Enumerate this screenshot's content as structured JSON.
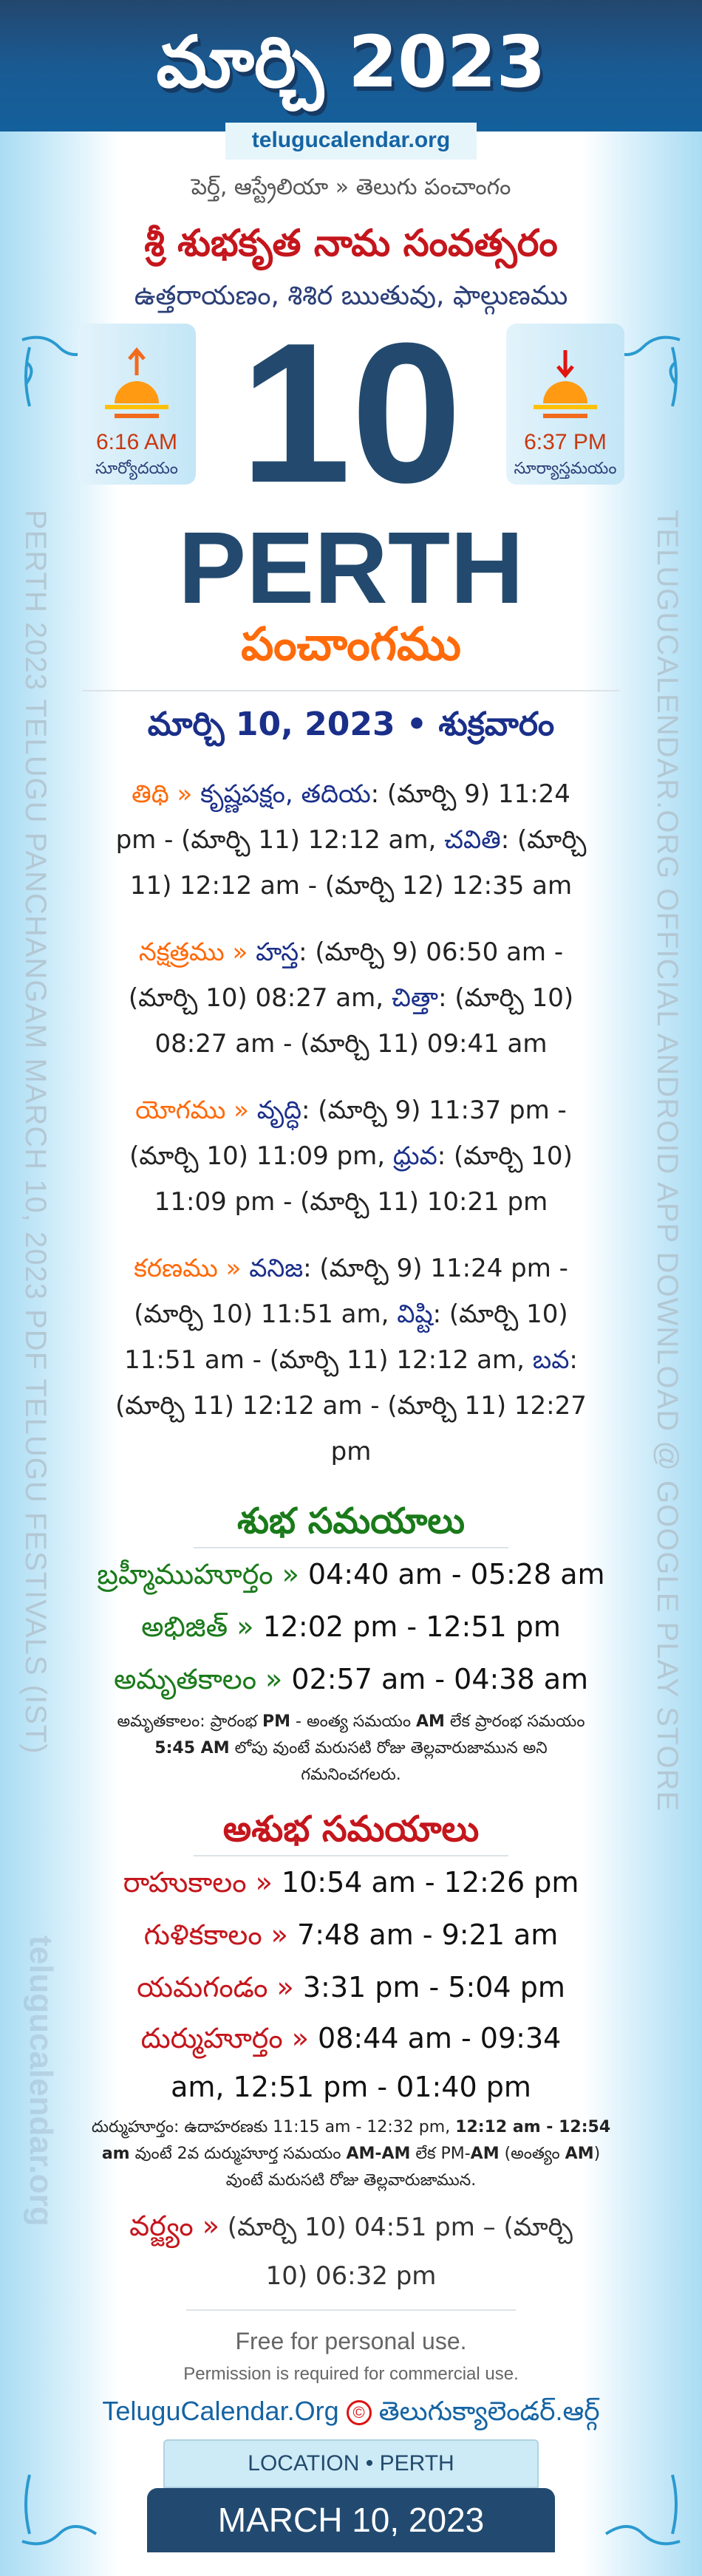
{
  "header": {
    "title": "మార్చి 2023",
    "site": "telugucalendar.org"
  },
  "intro": {
    "subtitle": "పెర్త్, ఆస్ట్రేలియా » తెలుగు పంచాంగం",
    "samvatsaram": "శ్రీ శుభకృత నామ సంవత్సరం",
    "season": "ఉత్తరాయణం, శిశిర ఋతువు, ఫాల్గుణము"
  },
  "sunrise": {
    "time": "6:16 AM",
    "label": "సూర్యోదయం",
    "icon": "sunrise-icon"
  },
  "sunset": {
    "time": "6:37 PM",
    "label": "సూర్యాస్తమయం",
    "icon": "sunset-icon"
  },
  "day": "10",
  "city": "PERTH",
  "panchangam": "పంచాంగము",
  "date_line": "మార్చి 10, 2023 • శుక్రవారం",
  "side": {
    "left": "PERTH 2023 TELUGU PANCHANGAM MARCH 10, 2023 PDF TELUGU FESTIVALS (IST)",
    "right": "TELUGUCALENDAR.ORG OFFICIAL ANDROID APP DOWNLOAD @ GOOGLE PLAY STORE",
    "watermark": "telugucalendar.org"
  },
  "elements": [
    {
      "label": "తిథి »",
      "items": [
        {
          "name": "కృష్ణపక్షం, తదియ",
          "text": ": (మార్చి 9) 11:24 pm - (మార్చి 11) 12:12 am, "
        },
        {
          "name": "చవితి",
          "text": ": (మార్చి 11) 12:12 am - (మార్చి 12) 12:35 am"
        }
      ]
    },
    {
      "label": "నక్షత్రము »",
      "items": [
        {
          "name": "హస్త",
          "text": ": (మార్చి 9) 06:50 am - (మార్చి 10) 08:27 am, "
        },
        {
          "name": "చిత్తా",
          "text": ": (మార్చి 10) 08:27 am - (మార్చి 11) 09:41 am"
        }
      ]
    },
    {
      "label": "యోగము »",
      "items": [
        {
          "name": "వృద్ధి",
          "text": ": (మార్చి 9) 11:37 pm - (మార్చి 10) 11:09 pm, "
        },
        {
          "name": "ధ్రువ",
          "text": ": (మార్చి 10) 11:09 pm - (మార్చి 11) 10:21 pm"
        }
      ]
    },
    {
      "label": "కరణము »",
      "items": [
        {
          "name": "వనిజ",
          "text": ": (మార్చి 9) 11:24 pm - (మార్చి 10) 11:51 am, "
        },
        {
          "name": "విష్టి",
          "text": ": (మార్చి 10) 11:51 am - (మార్చి 11) 12:12 am, "
        },
        {
          "name": "బవ",
          "text": ": (మార్చి 11) 12:12 am - (మార్చి 11) 12:27 pm"
        }
      ]
    }
  ],
  "good": {
    "title": "శుభ సమయాలు",
    "rows": [
      {
        "label": "బ్రహ్మీముహూర్తం »",
        "value": " 04:40 am - 05:28 am"
      },
      {
        "label": "అభిజిత్ »",
        "value": " 12:02 pm - 12:51 pm"
      },
      {
        "label": "అమృతకాలం »",
        "value": " 02:57 am - 04:38 am"
      }
    ],
    "note": {
      "a": "అమృతకాలం: ప్రారంభ ",
      "b": "PM",
      "c": " - అంత్య సమయం ",
      "d": "AM",
      "e": " లేక ప్రారంభ సమయం ",
      "f": "5:45 AM",
      "g": " లోపు వుంటే మరుసటి రోజు తెల్లవారుజామున అని గమనించగలరు."
    }
  },
  "bad": {
    "title": "అశుభ సమయాలు",
    "rows": [
      {
        "label": "రాహుకాలం »",
        "value": " 10:54 am - 12:26 pm"
      },
      {
        "label": "గుళికకాలం »",
        "value": " 7:48 am - 9:21 am"
      },
      {
        "label": "యమగండం »",
        "value": " 3:31 pm - 5:04 pm"
      },
      {
        "label": "దుర్ముహూర్తం »",
        "value": " 08:44 am - 09:34 am, 12:51 pm - 01:40 pm"
      }
    ],
    "note": {
      "a": "దుర్ముహూర్తం: ఉదాహరణకు 11:15 am - 12:32 pm, ",
      "b": "12:12 am - 12:54 am",
      "c": " వుంటే 2వ దుర్ముహూర్త సమయం ",
      "d": "AM-AM",
      "e": " లేక PM-",
      "f": "AM",
      "g": " (అంత్యం ",
      "h": "AM",
      "i": ") వుంటే మరుసటి రోజు తెల్లవారుజామున."
    },
    "varjyam": {
      "label": "వర్జ్యం »",
      "value": " (మార్చి 10) 04:51 pm – (మార్చి 10) 06:32 pm"
    }
  },
  "footer": {
    "free": "Free for personal use.",
    "permission": "Permission is required for commercial use.",
    "brand_en": "TeluguCalendar.Org",
    "copyright": "©",
    "brand_te": "తెలుగుక్యాలెండర్.ఆర్గ్",
    "location": "LOCATION • PERTH",
    "date": "MARCH 10, 2023"
  },
  "colors": {
    "navy": "#234a6e",
    "orange": "#ff6a0a",
    "red": "#c4161c",
    "green": "#1a7a1a"
  }
}
